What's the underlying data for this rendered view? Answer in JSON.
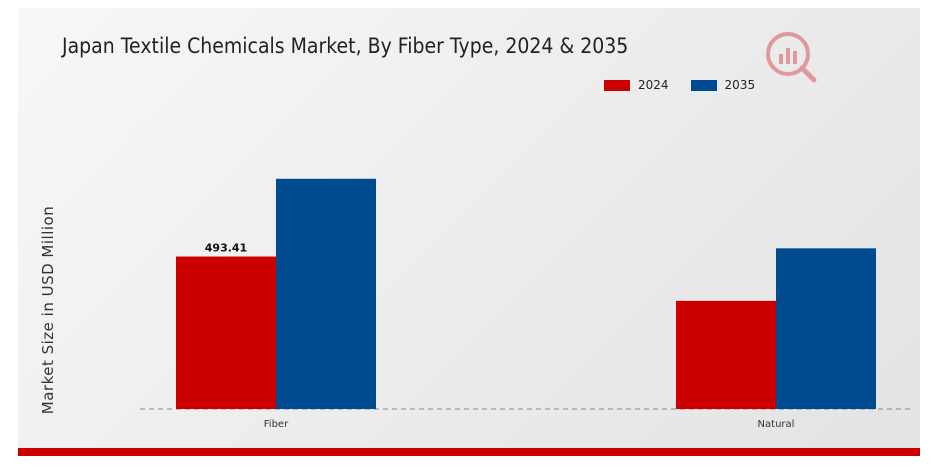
{
  "chart_data": {
    "type": "bar",
    "title": "Japan Textile Chemicals Market, By Fiber Type, 2024 & 2035",
    "ylabel": "Market Size in USD Million",
    "xlabel": "",
    "categories": [
      "Fiber",
      "Natural"
    ],
    "series": [
      {
        "name": "2024",
        "color": "#cc0000",
        "values": [
          493.41,
          350
        ]
      },
      {
        "name": "2035",
        "color": "#004a8f",
        "values": [
          745,
          520
        ]
      }
    ],
    "data_labels": [
      {
        "series": 0,
        "category": 0,
        "text": "493.41"
      }
    ],
    "ylim": [
      0,
      1000
    ],
    "legend_position": "top-right",
    "grid": false,
    "baseline_style": "dashed"
  }
}
